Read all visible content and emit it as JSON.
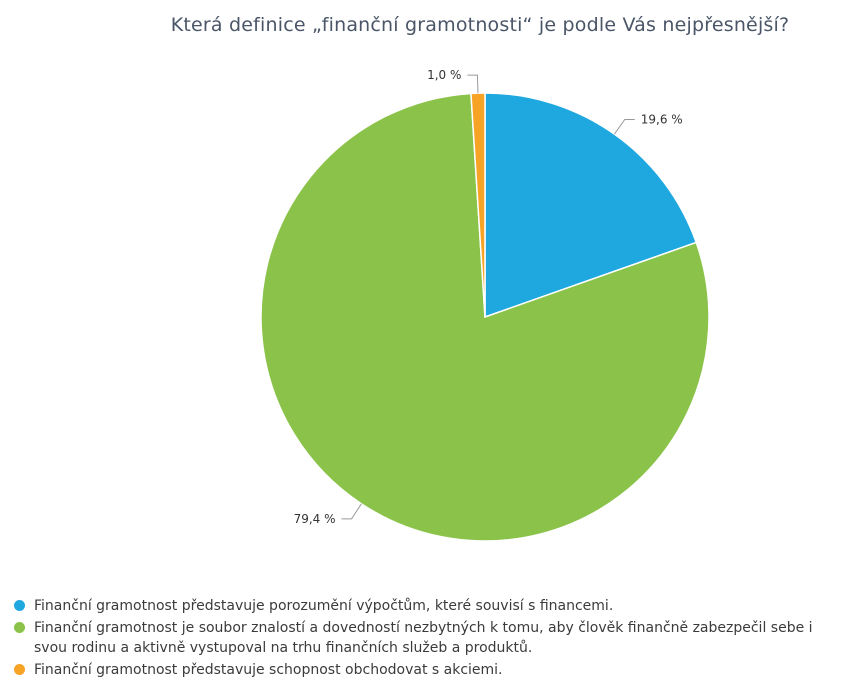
{
  "chart_data": {
    "type": "pie",
    "title": "Která definice „finanční gramotnosti“ je podle Vás nejpřesnější?",
    "categories": [
      "Finanční gramotnost představuje porozumění výpočtům, které souvisí s financemi.",
      "Finanční gramotnost je soubor znalostí a dovedností nezbytných k tomu, aby člověk finančně zabezpečil sebe i svou rodinu a aktivně vystupoval na trhu finančních služeb a produktů.",
      "Finanční gramotnost představuje schopnost obchodovat s akciemi."
    ],
    "values": [
      19.6,
      79.4,
      1.0
    ],
    "data_labels": [
      "19,6 %",
      "79,4 %",
      "1,0 %"
    ],
    "colors": [
      "#1fa8e0",
      "#8bc34a",
      "#f7a325"
    ],
    "legend_position": "bottom-left"
  }
}
